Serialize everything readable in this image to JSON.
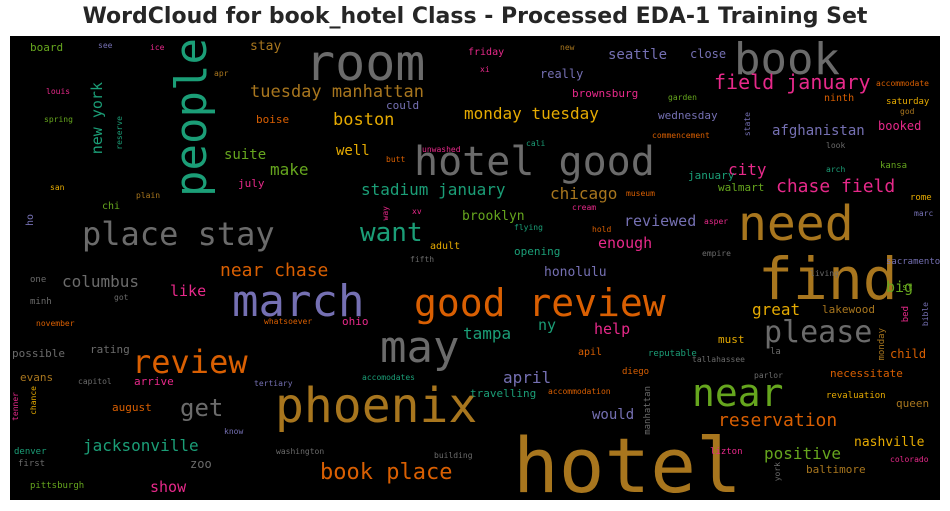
{
  "chart_data": {
    "type": "wordcloud",
    "title": "WordCloud for book_hotel Class - Processed EDA-1 Training Set",
    "words": [
      {
        "text": "hotel",
        "c": "#a8761e"
      },
      {
        "text": "room",
        "c": "#6b6b6b"
      },
      {
        "text": "book",
        "c": "#6b6b6b"
      },
      {
        "text": "find",
        "c": "#a8761e"
      },
      {
        "text": "need",
        "c": "#a8761e"
      },
      {
        "text": "march",
        "c": "#7570b3"
      },
      {
        "text": "phoenix",
        "c": "#a8761e"
      },
      {
        "text": "hotel good",
        "c": "#6b6b6b"
      },
      {
        "text": "good review",
        "c": "#d95f02"
      },
      {
        "text": "may",
        "c": "#6b6b6b"
      },
      {
        "text": "people",
        "c": "#1b9e77"
      },
      {
        "text": "place stay",
        "c": "#6b6b6b"
      },
      {
        "text": "review",
        "c": "#d95f02"
      },
      {
        "text": "near",
        "c": "#66a61e"
      },
      {
        "text": "please",
        "c": "#6b6b6b"
      },
      {
        "text": "want",
        "c": "#1b9e77"
      },
      {
        "text": "book place",
        "c": "#d95f02"
      },
      {
        "text": "field january",
        "c": "#e7298a"
      },
      {
        "text": "get",
        "c": "#6b6b6b"
      },
      {
        "text": "near chase",
        "c": "#d95f02"
      },
      {
        "text": "reservation",
        "c": "#d95f02"
      },
      {
        "text": "chase field",
        "c": "#e7298a"
      },
      {
        "text": "tuesday manhattan",
        "c": "#a8761e"
      },
      {
        "text": "monday tuesday",
        "c": "#e6ab02"
      },
      {
        "text": "boston",
        "c": "#e6ab02"
      },
      {
        "text": "stadium january",
        "c": "#1b9e77"
      },
      {
        "text": "columbus",
        "c": "#6b6b6b"
      },
      {
        "text": "jacksonville",
        "c": "#1b9e77"
      },
      {
        "text": "positive",
        "c": "#66a61e"
      },
      {
        "text": "great",
        "c": "#e6ab02"
      },
      {
        "text": "april",
        "c": "#7570b3"
      },
      {
        "text": "tampa",
        "c": "#1b9e77"
      },
      {
        "text": "make",
        "c": "#66a61e"
      },
      {
        "text": "city",
        "c": "#e7298a"
      },
      {
        "text": "chicago",
        "c": "#a8761e"
      },
      {
        "text": "reviewed",
        "c": "#7570b3"
      },
      {
        "text": "enough",
        "c": "#e7298a"
      },
      {
        "text": "help",
        "c": "#e7298a"
      },
      {
        "text": "show",
        "c": "#e7298a"
      },
      {
        "text": "like",
        "c": "#e7298a"
      },
      {
        "text": "big",
        "c": "#66a61e"
      },
      {
        "text": "new york",
        "c": "#1b9e77"
      },
      {
        "text": "seattle",
        "c": "#7570b3"
      },
      {
        "text": "afghanistan",
        "c": "#7570b3"
      },
      {
        "text": "nashville",
        "c": "#e6ab02"
      },
      {
        "text": "honolulu",
        "c": "#7570b3"
      },
      {
        "text": "brooklyn",
        "c": "#66a61e"
      },
      {
        "text": "ny",
        "c": "#1b9e77"
      },
      {
        "text": "would",
        "c": "#7570b3"
      },
      {
        "text": "well",
        "c": "#e6ab02"
      },
      {
        "text": "suite",
        "c": "#66a61e"
      },
      {
        "text": "stay",
        "c": "#a8761e"
      },
      {
        "text": "really",
        "c": "#7570b3"
      },
      {
        "text": "close",
        "c": "#7570b3"
      },
      {
        "text": "booked",
        "c": "#e7298a"
      },
      {
        "text": "zoo",
        "c": "#6b6b6b"
      },
      {
        "text": "august",
        "c": "#d95f02"
      },
      {
        "text": "evans",
        "c": "#a8761e"
      },
      {
        "text": "baltimore",
        "c": "#a8761e"
      },
      {
        "text": "queen",
        "c": "#a8761e"
      },
      {
        "text": "child",
        "c": "#d95f02"
      },
      {
        "text": "necessitate",
        "c": "#d95f02"
      },
      {
        "text": "must",
        "c": "#e6ab02"
      },
      {
        "text": "rating",
        "c": "#6b6b6b"
      },
      {
        "text": "arrive",
        "c": "#e7298a"
      },
      {
        "text": "possible",
        "c": "#6b6b6b"
      },
      {
        "text": "boise",
        "c": "#d95f02"
      },
      {
        "text": "could",
        "c": "#7570b3"
      },
      {
        "text": "ohio",
        "c": "#e7298a"
      },
      {
        "text": "brownsburg",
        "c": "#e7298a"
      },
      {
        "text": "wednesday",
        "c": "#7570b3"
      },
      {
        "text": "lakewood",
        "c": "#a8761e"
      },
      {
        "text": "january",
        "c": "#1b9e77"
      },
      {
        "text": "walmart",
        "c": "#66a61e"
      },
      {
        "text": "travelling",
        "c": "#1b9e77"
      },
      {
        "text": "opening",
        "c": "#1b9e77"
      },
      {
        "text": "adult",
        "c": "#e6ab02"
      },
      {
        "text": "apil",
        "c": "#d95f02"
      },
      {
        "text": "board",
        "c": "#66a61e"
      },
      {
        "text": "friday",
        "c": "#e7298a"
      },
      {
        "text": "ninth",
        "c": "#d95f02"
      },
      {
        "text": "saturday",
        "c": "#e6ab02"
      },
      {
        "text": "july",
        "c": "#e7298a"
      },
      {
        "text": "one",
        "c": "#6b6b6b"
      },
      {
        "text": "minh",
        "c": "#6b6b6b"
      },
      {
        "text": "la",
        "c": "#6b6b6b"
      },
      {
        "text": "manhattan",
        "c": "#6b6b6b"
      },
      {
        "text": "monday",
        "c": "#a8761e"
      },
      {
        "text": "bed",
        "c": "#e7298a"
      },
      {
        "text": "st",
        "c": "#66a61e"
      },
      {
        "text": "rome",
        "c": "#e6ab02"
      },
      {
        "text": "kansa",
        "c": "#66a61e"
      },
      {
        "text": "god",
        "c": "#a8761e"
      },
      {
        "text": "sacramento",
        "c": "#7570b3"
      },
      {
        "text": "marc",
        "c": "#7570b3"
      },
      {
        "text": "bible",
        "c": "#7570b3"
      },
      {
        "text": "colorado",
        "c": "#e7298a"
      },
      {
        "text": "lizton",
        "c": "#e7298a"
      },
      {
        "text": "revaluation",
        "c": "#e6ab02"
      },
      {
        "text": "reputable",
        "c": "#1b9e77"
      },
      {
        "text": "tallahassee",
        "c": "#6b6b6b"
      },
      {
        "text": "parlor",
        "c": "#6b6b6b"
      },
      {
        "text": "diego",
        "c": "#d95f02"
      },
      {
        "text": "accommodation",
        "c": "#d95f02"
      },
      {
        "text": "accomodates",
        "c": "#1b9e77"
      },
      {
        "text": "capitol",
        "c": "#6b6b6b"
      },
      {
        "text": "tertiary",
        "c": "#7570b3"
      },
      {
        "text": "know",
        "c": "#7570b3"
      },
      {
        "text": "washington",
        "c": "#6b6b6b"
      },
      {
        "text": "building",
        "c": "#6b6b6b"
      },
      {
        "text": "denver",
        "c": "#1b9e77"
      },
      {
        "text": "first",
        "c": "#6b6b6b"
      },
      {
        "text": "pittsburgh",
        "c": "#66a61e"
      },
      {
        "text": "tenner",
        "c": "#e7298a"
      },
      {
        "text": "chance",
        "c": "#e6ab02"
      },
      {
        "text": "york",
        "c": "#6b6b6b"
      },
      {
        "text": "whatsoever",
        "c": "#d95f02"
      },
      {
        "text": "got",
        "c": "#6b6b6b"
      },
      {
        "text": "november",
        "c": "#d95f02"
      },
      {
        "text": "fifth",
        "c": "#6b6b6b"
      },
      {
        "text": "flying",
        "c": "#1b9e77"
      },
      {
        "text": "hold",
        "c": "#d95f02"
      },
      {
        "text": "museum",
        "c": "#d95f02"
      },
      {
        "text": "cream",
        "c": "#e7298a"
      },
      {
        "text": "asper",
        "c": "#e7298a"
      },
      {
        "text": "empire",
        "c": "#6b6b6b"
      },
      {
        "text": "living",
        "c": "#6b6b6b"
      },
      {
        "text": "arch",
        "c": "#1b9e77"
      },
      {
        "text": "look",
        "c": "#6b6b6b"
      },
      {
        "text": "state",
        "c": "#7570b3"
      },
      {
        "text": "commencement",
        "c": "#d95f02"
      },
      {
        "text": "accommodate",
        "c": "#d95f02"
      },
      {
        "text": "garden",
        "c": "#66a61e"
      },
      {
        "text": "cali",
        "c": "#1b9e77"
      },
      {
        "text": "butt",
        "c": "#d95f02"
      },
      {
        "text": "unwashed",
        "c": "#e7298a"
      },
      {
        "text": "xv",
        "c": "#e7298a"
      },
      {
        "text": "way",
        "c": "#e7298a"
      },
      {
        "text": "plain",
        "c": "#a8761e"
      },
      {
        "text": "reserve",
        "c": "#1b9e77"
      },
      {
        "text": "chi",
        "c": "#66a61e"
      },
      {
        "text": "ho",
        "c": "#7570b3"
      },
      {
        "text": "san",
        "c": "#e6ab02"
      },
      {
        "text": "spring",
        "c": "#66a61e"
      },
      {
        "text": "louis",
        "c": "#e7298a"
      },
      {
        "text": "see",
        "c": "#7570b3"
      },
      {
        "text": "ice",
        "c": "#e7298a"
      },
      {
        "text": "apr",
        "c": "#a8761e"
      },
      {
        "text": "xi",
        "c": "#e7298a"
      },
      {
        "text": "new",
        "c": "#a8761e"
      }
    ]
  }
}
